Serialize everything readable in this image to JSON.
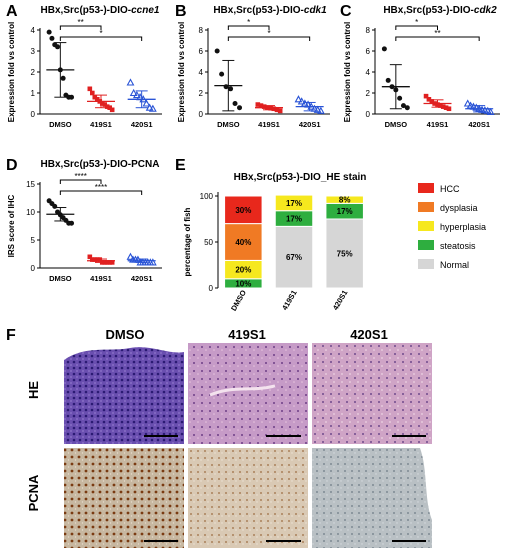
{
  "figure": {
    "panel_letters": [
      "A",
      "B",
      "C",
      "D",
      "E",
      "F"
    ],
    "colors": {
      "dmso": "#111111",
      "s419": "#e02020",
      "s420": "#2a54d6",
      "hcc": "#e8281c",
      "dysplasia": "#f07a24",
      "hyperplasia": "#f6e81e",
      "steatosis": "#2eae3f",
      "normal": "#d6d6d6"
    }
  },
  "chart_data": [
    {
      "id": "A",
      "type": "scatter",
      "title_prefix": "HBx,Src(p53-)-DIO-",
      "title_gene": "ccne1",
      "ylabel": "Expression fold vs control",
      "ylim": [
        0,
        4
      ],
      "yticks": [
        "0",
        "1",
        "2",
        "3",
        "4"
      ],
      "categories": [
        "DMSO",
        "419S1",
        "420S1"
      ],
      "groups": [
        {
          "label": "DMSO",
          "marker": "circle",
          "values": [
            3.9,
            3.6,
            3.3,
            3.2,
            2.1,
            1.7,
            0.9,
            0.8,
            0.8
          ],
          "mean": 2.1,
          "sd": 1.3
        },
        {
          "label": "419S1",
          "marker": "square",
          "values": [
            1.2,
            1.0,
            0.8,
            0.7,
            0.6,
            0.5,
            0.45,
            0.35,
            0.3,
            0.2
          ],
          "mean": 0.6,
          "sd": 0.3
        },
        {
          "label": "420S1",
          "marker": "triangle",
          "values": [
            1.5,
            1.0,
            0.9,
            0.8,
            0.7,
            0.5,
            0.3,
            0.25
          ],
          "mean": 0.7,
          "sd": 0.4
        }
      ],
      "brackets": [
        {
          "from": 0,
          "to": 1,
          "label": "**"
        },
        {
          "from": 0,
          "to": 2,
          "label": "*"
        }
      ]
    },
    {
      "id": "B",
      "type": "scatter",
      "title_prefix": "HBx,Src(p53-)-DIO-",
      "title_gene": "cdk1",
      "ylabel": "Expression fold vs control",
      "ylim": [
        0,
        8
      ],
      "yticks": [
        "0",
        "2",
        "4",
        "6",
        "8"
      ],
      "categories": [
        "DMSO",
        "419S1",
        "420S1"
      ],
      "groups": [
        {
          "label": "DMSO",
          "marker": "circle",
          "values": [
            6.0,
            3.8,
            2.6,
            2.4,
            1.0,
            0.6
          ],
          "mean": 2.7,
          "sd": 2.4
        },
        {
          "label": "419S1",
          "marker": "square",
          "values": [
            0.9,
            0.8,
            0.7,
            0.6,
            0.55,
            0.5,
            0.4,
            0.3
          ],
          "mean": 0.6,
          "sd": 0.2
        },
        {
          "label": "420S1",
          "marker": "triangle",
          "values": [
            1.4,
            1.2,
            1.0,
            0.9,
            0.7,
            0.5,
            0.4,
            0.3
          ],
          "mean": 0.7,
          "sd": 0.4
        }
      ],
      "brackets": [
        {
          "from": 0,
          "to": 1,
          "label": "*"
        },
        {
          "from": 0,
          "to": 2,
          "label": "*"
        }
      ]
    },
    {
      "id": "C",
      "type": "scatter",
      "title_prefix": "HBx,Src(p53-)-DIO-",
      "title_gene": "cdk2",
      "ylabel": "Expression fold vs control",
      "ylim": [
        0,
        8
      ],
      "yticks": [
        "0",
        "2",
        "4",
        "6",
        "8"
      ],
      "categories": [
        "DMSO",
        "419S1",
        "420S1"
      ],
      "groups": [
        {
          "label": "DMSO",
          "marker": "circle",
          "values": [
            6.2,
            3.2,
            2.6,
            2.3,
            1.5,
            0.8,
            0.6
          ],
          "mean": 2.6,
          "sd": 2.1
        },
        {
          "label": "419S1",
          "marker": "square",
          "values": [
            1.7,
            1.4,
            1.2,
            1.0,
            0.9,
            0.8,
            0.7,
            0.6,
            0.5
          ],
          "mean": 1.0,
          "sd": 0.35
        },
        {
          "label": "420S1",
          "marker": "triangle",
          "values": [
            1.0,
            0.8,
            0.7,
            0.6,
            0.5,
            0.4,
            0.35,
            0.3,
            0.2
          ],
          "mean": 0.5,
          "sd": 0.3
        }
      ],
      "brackets": [
        {
          "from": 0,
          "to": 1,
          "label": "*"
        },
        {
          "from": 0,
          "to": 2,
          "label": "**"
        }
      ]
    },
    {
      "id": "D",
      "type": "scatter",
      "title_prefix": "HBx,Src(p53-)-DIO-PCNA",
      "title_gene": "",
      "ylabel": "IRS score of IHC",
      "ylim": [
        0,
        15
      ],
      "yticks": [
        "0",
        "5",
        "10",
        "15"
      ],
      "categories": [
        "DMSO",
        "419S1",
        "420S1"
      ],
      "groups": [
        {
          "label": "DMSO",
          "marker": "circle",
          "values": [
            12,
            11.5,
            11,
            10,
            9.5,
            9,
            8.5,
            8,
            8
          ],
          "mean": 9.6,
          "sd": 1.2
        },
        {
          "label": "419S1",
          "marker": "square",
          "values": [
            2,
            1.5,
            1.5,
            1.5,
            1.5,
            1,
            1,
            1,
            1,
            1
          ],
          "mean": 1.3,
          "sd": 0.3
        },
        {
          "label": "420S1",
          "marker": "triangle",
          "values": [
            2,
            1.5,
            1.5,
            1.5,
            1,
            1,
            1,
            1,
            1,
            1
          ],
          "mean": 1.3,
          "sd": 0.3
        }
      ],
      "brackets": [
        {
          "from": 0,
          "to": 1,
          "label": "****"
        },
        {
          "from": 0,
          "to": 2,
          "label": "****"
        }
      ]
    },
    {
      "id": "E",
      "type": "bar",
      "stacked": true,
      "title": "HBx,Src(p53-)-DIO_HE stain",
      "ylabel": "percentage of fish",
      "ylim": [
        0,
        100
      ],
      "yticks": [
        "0",
        "50",
        "100"
      ],
      "categories": [
        "DMSO",
        "419S1",
        "420S1"
      ],
      "legend_position": "right",
      "series": [
        {
          "name": "HCC",
          "color_key": "hcc",
          "values": [
            30,
            0,
            0
          ],
          "labels": [
            "30%",
            "",
            ""
          ]
        },
        {
          "name": "dysplasia",
          "color_key": "dysplasia",
          "values": [
            40,
            0,
            0
          ],
          "labels": [
            "40%",
            "",
            ""
          ]
        },
        {
          "name": "hyperplasia",
          "color_key": "hyperplasia",
          "values": [
            20,
            17,
            8
          ],
          "labels": [
            "20%",
            "17%",
            "8%"
          ]
        },
        {
          "name": "steatosis",
          "color_key": "steatosis",
          "values": [
            10,
            17,
            17
          ],
          "labels": [
            "10%",
            "17%",
            "17%"
          ]
        },
        {
          "name": "Normal",
          "color_key": "normal",
          "values": [
            0,
            67,
            75
          ],
          "labels": [
            "",
            "67%",
            "75%"
          ]
        }
      ]
    }
  ],
  "histology": {
    "columns": [
      "DMSO",
      "419S1",
      "420S1"
    ],
    "rows": [
      "HE",
      "PCNA"
    ]
  }
}
